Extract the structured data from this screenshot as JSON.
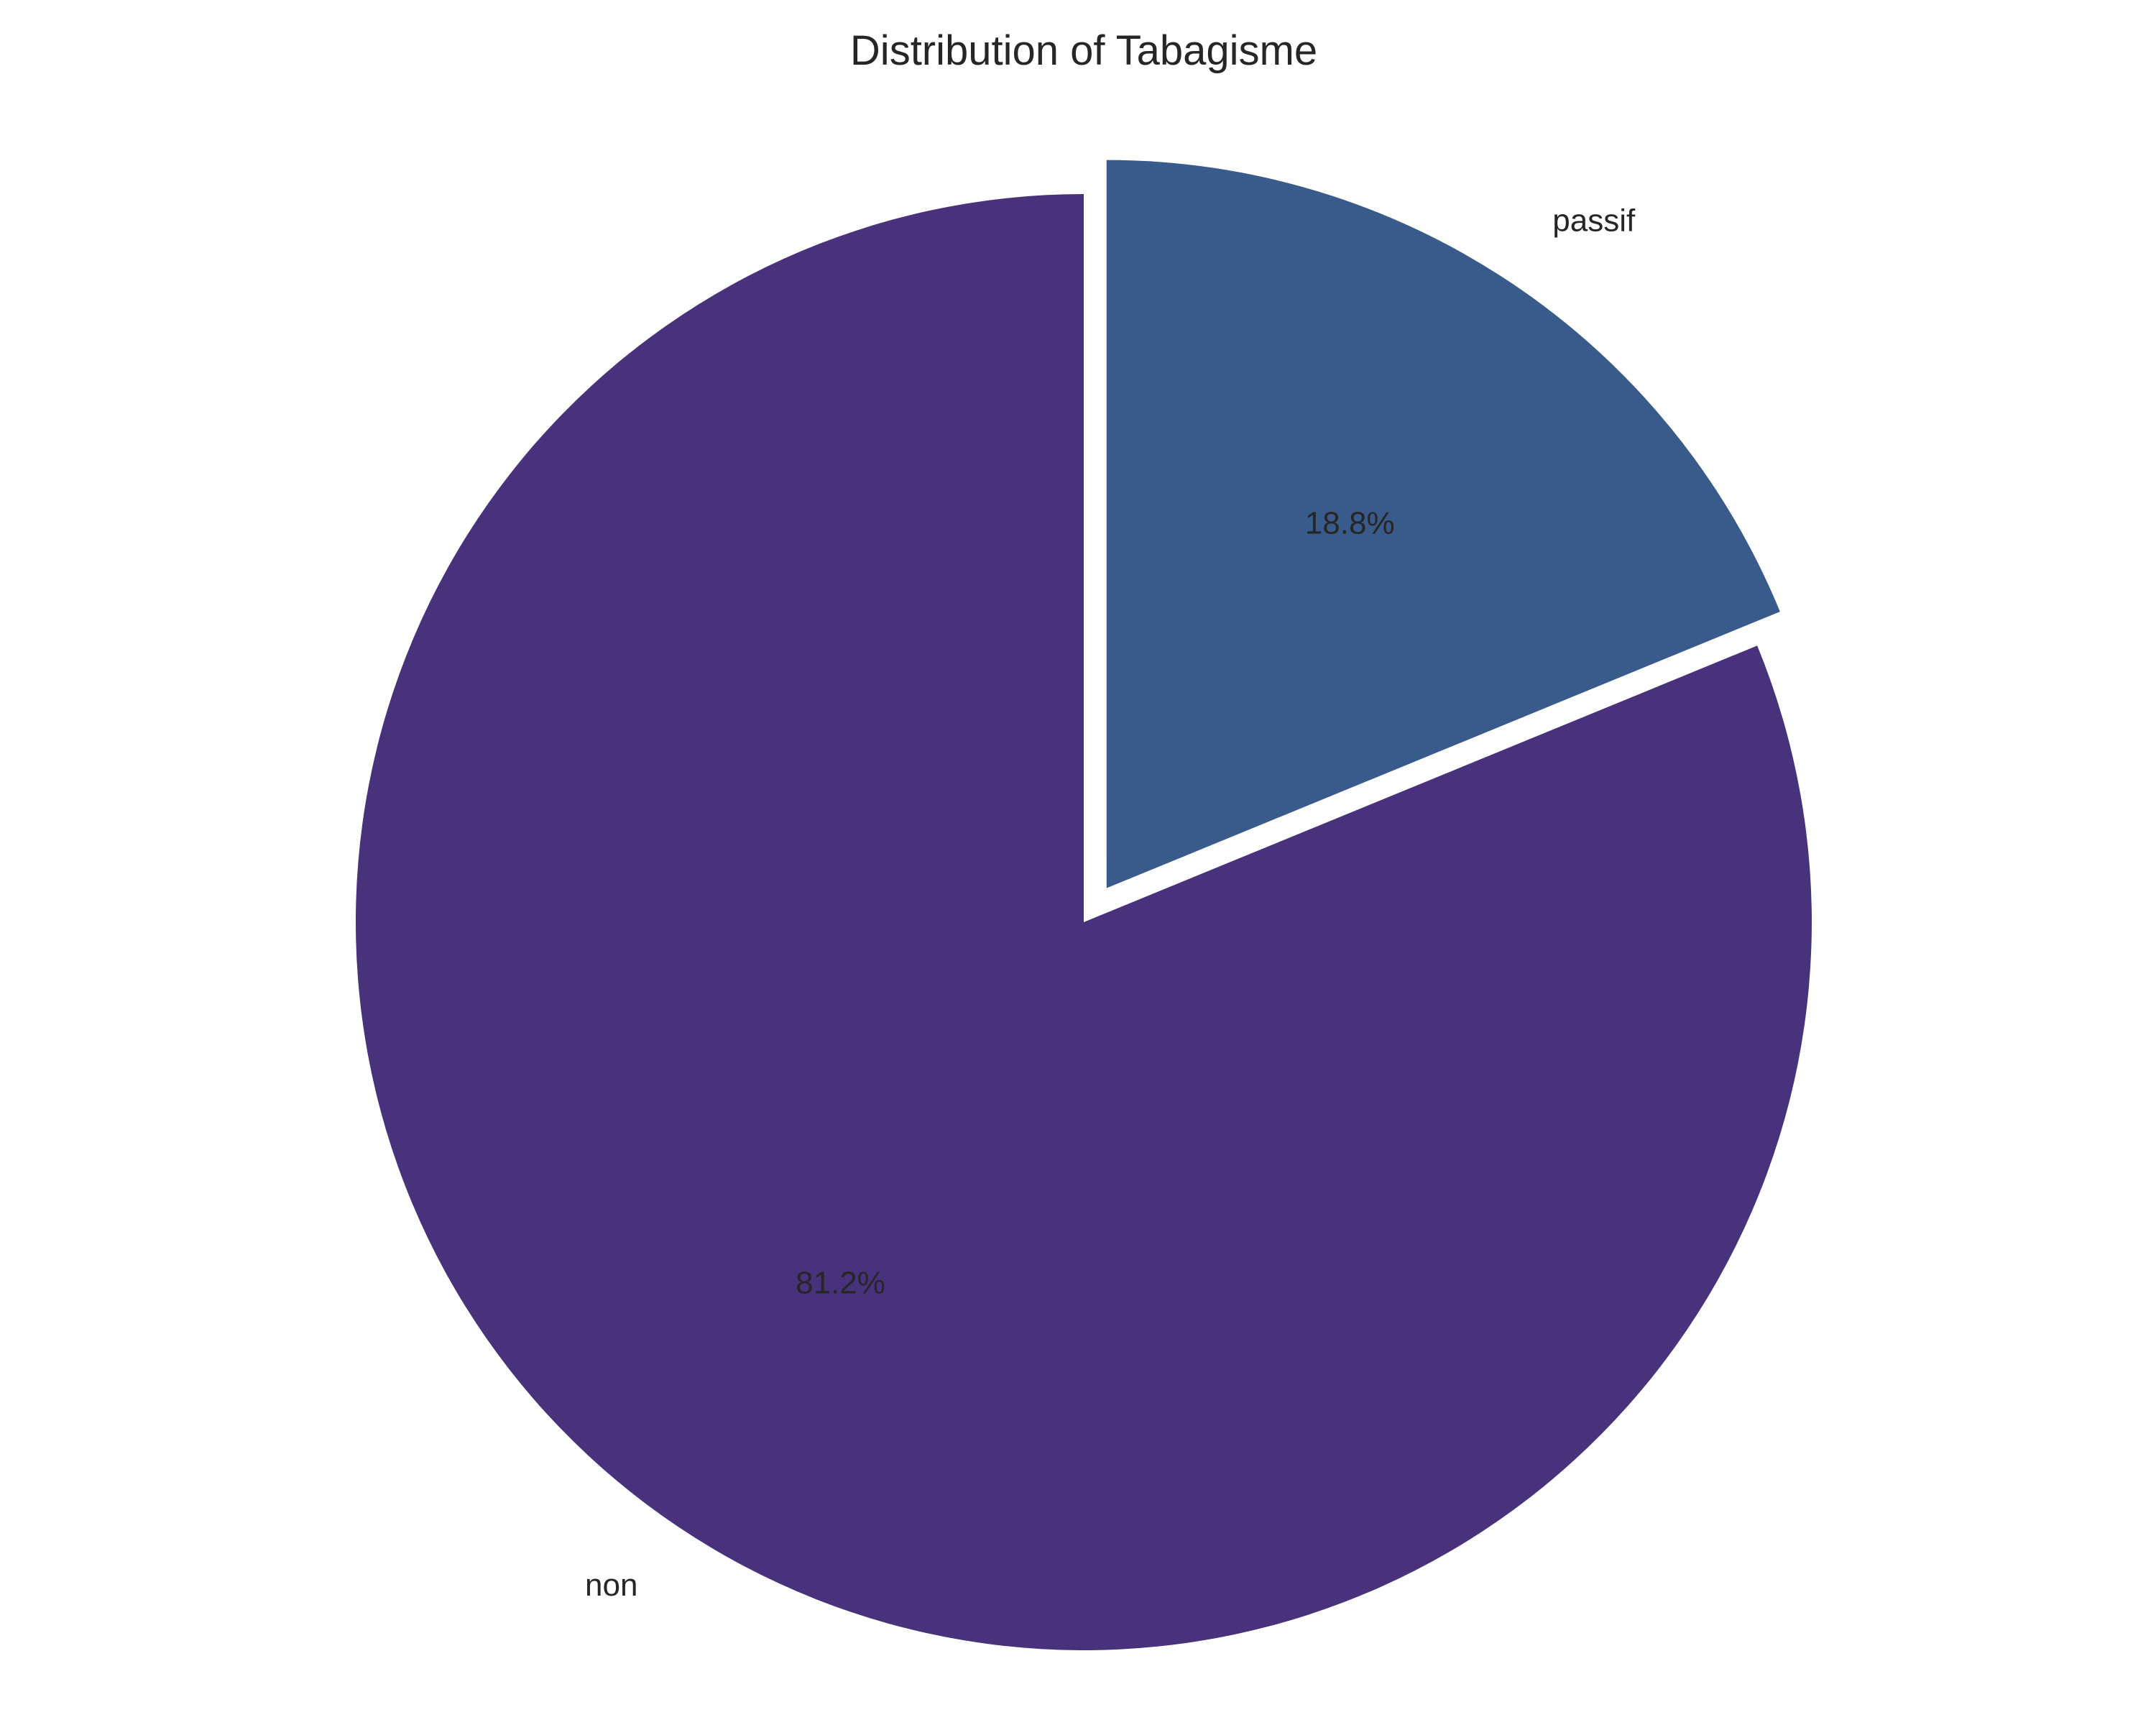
{
  "chart_data": {
    "type": "pie",
    "title": "Distribution of Tabagisme",
    "categories": [
      "non",
      "passif"
    ],
    "values": [
      81.2,
      18.8
    ],
    "value_labels": [
      "81.2%",
      "18.8%"
    ],
    "colors": [
      "#48327c",
      "#385b8c"
    ],
    "exploded": [
      "passif"
    ],
    "start": "top",
    "direction": "clockwise-from-passif",
    "legend": "none"
  }
}
